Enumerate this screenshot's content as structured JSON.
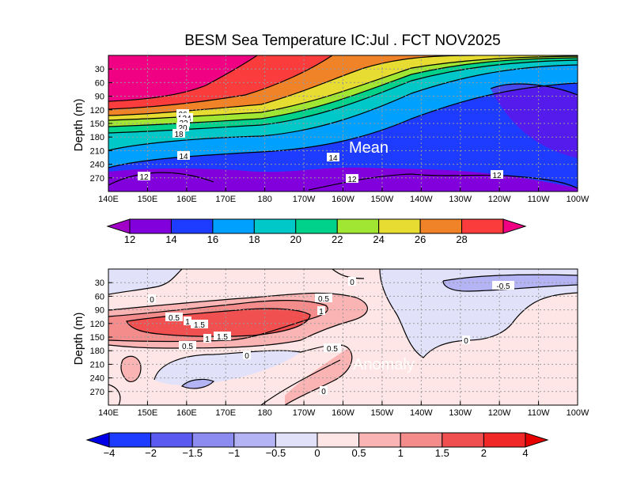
{
  "title": "BESM Sea Temperature  IC:Jul . FCT NOV2025",
  "chart_data": [
    {
      "type": "heatmap",
      "panel": "mean",
      "title": "BESM Sea Temperature  IC:Jul . FCT NOV2025",
      "overlay_label": "Mean",
      "ylabel": "Depth (m)",
      "x_ticks": [
        "140E",
        "150E",
        "160E",
        "170E",
        "180",
        "170W",
        "160W",
        "150W",
        "140W",
        "130W",
        "120W",
        "110W",
        "100W"
      ],
      "y_ticks": [
        "30",
        "60",
        "90",
        "120",
        "150",
        "180",
        "210",
        "240",
        "270"
      ],
      "xlim_lon": [
        140,
        260
      ],
      "ylim_depth": [
        300,
        0
      ],
      "contour_levels": [
        12,
        14,
        16,
        18,
        20,
        22,
        24,
        26,
        28
      ],
      "contour_labels": [
        "26",
        "24",
        "22",
        "20",
        "18",
        "14",
        "14",
        "12",
        "12",
        "12"
      ],
      "colorbar": {
        "labels": [
          "12",
          "14",
          "16",
          "18",
          "20",
          "22",
          "24",
          "26",
          "28"
        ],
        "colors": [
          "#a000c8",
          "#8200dc",
          "#1e3cff",
          "#00a0ff",
          "#00c8c8",
          "#00d28c",
          "#a0e632",
          "#e6dc32",
          "#f08228",
          "#fa3c3c",
          "#f00082"
        ]
      }
    },
    {
      "type": "heatmap",
      "panel": "anomaly",
      "overlay_label": "Anomaly",
      "ylabel": "Depth (m)",
      "x_ticks": [
        "140E",
        "150E",
        "160E",
        "170E",
        "180",
        "170W",
        "160W",
        "150W",
        "140W",
        "130W",
        "120W",
        "110W",
        "100W"
      ],
      "y_ticks": [
        "30",
        "60",
        "90",
        "120",
        "150",
        "180",
        "210",
        "240",
        "270"
      ],
      "xlim_lon": [
        140,
        260
      ],
      "ylim_depth": [
        300,
        0
      ],
      "contour_levels": [
        -0.5,
        0,
        0.5,
        1,
        1.5
      ],
      "contour_labels": [
        "0",
        "0",
        "-0.5",
        "0.5",
        "1",
        "0.5",
        "1",
        "1.5",
        "1",
        "1.5",
        "0.5",
        "0.5",
        "0",
        "0",
        "0"
      ],
      "colorbar": {
        "labels": [
          "−4",
          "−2",
          "−1.5",
          "−1",
          "−0.5",
          "0",
          "0.5",
          "1",
          "1.5",
          "2",
          "4"
        ],
        "colors": [
          "#0000e6",
          "#1e3cff",
          "#5a5af0",
          "#8c8cf0",
          "#b4b4f5",
          "#e1e1fa",
          "#ffe6e6",
          "#fab4b4",
          "#f58c8c",
          "#f05050",
          "#f02828",
          "#e60000"
        ]
      }
    }
  ]
}
